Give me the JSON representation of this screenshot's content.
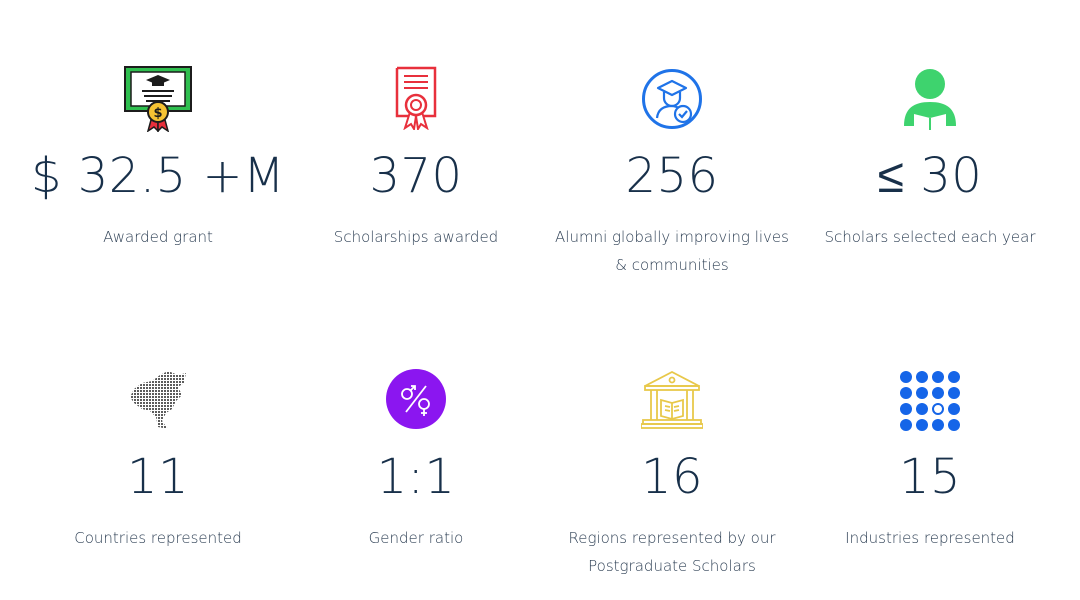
{
  "stats": [
    {
      "value": "$ 32.5 +M",
      "label": "Awarded grant",
      "icon": "certificate-icon"
    },
    {
      "value": "370",
      "label": "Scholarships awarded",
      "icon": "award-document-icon"
    },
    {
      "value": "256",
      "label": "Alumni globally improving lives & communities",
      "icon": "graduate-badge-icon"
    },
    {
      "value": "≤ 30",
      "label": "Scholars selected each year",
      "icon": "scholar-reading-icon"
    },
    {
      "value": "11",
      "label": "Countries represented",
      "icon": "dotted-map-icon"
    },
    {
      "value": "1:1",
      "label": "Gender ratio",
      "icon": "gender-symbol-icon"
    },
    {
      "value": "16",
      "label": "Regions represented by our Postgraduate Scholars",
      "icon": "library-building-icon"
    },
    {
      "value": "15",
      "label": "Industries represented",
      "icon": "dots-grid-icon"
    }
  ],
  "colors": {
    "text": "#18304a",
    "certificate_green": "#2fbf4f",
    "award_red": "#e8303c",
    "graduate_blue": "#1f73e8",
    "scholar_green": "#3ed36e",
    "map_gray": "#5c5c5c",
    "gender_purple": "#8b16f0",
    "library_gold": "#e8c84a",
    "grid_blue": "#1565e8"
  }
}
